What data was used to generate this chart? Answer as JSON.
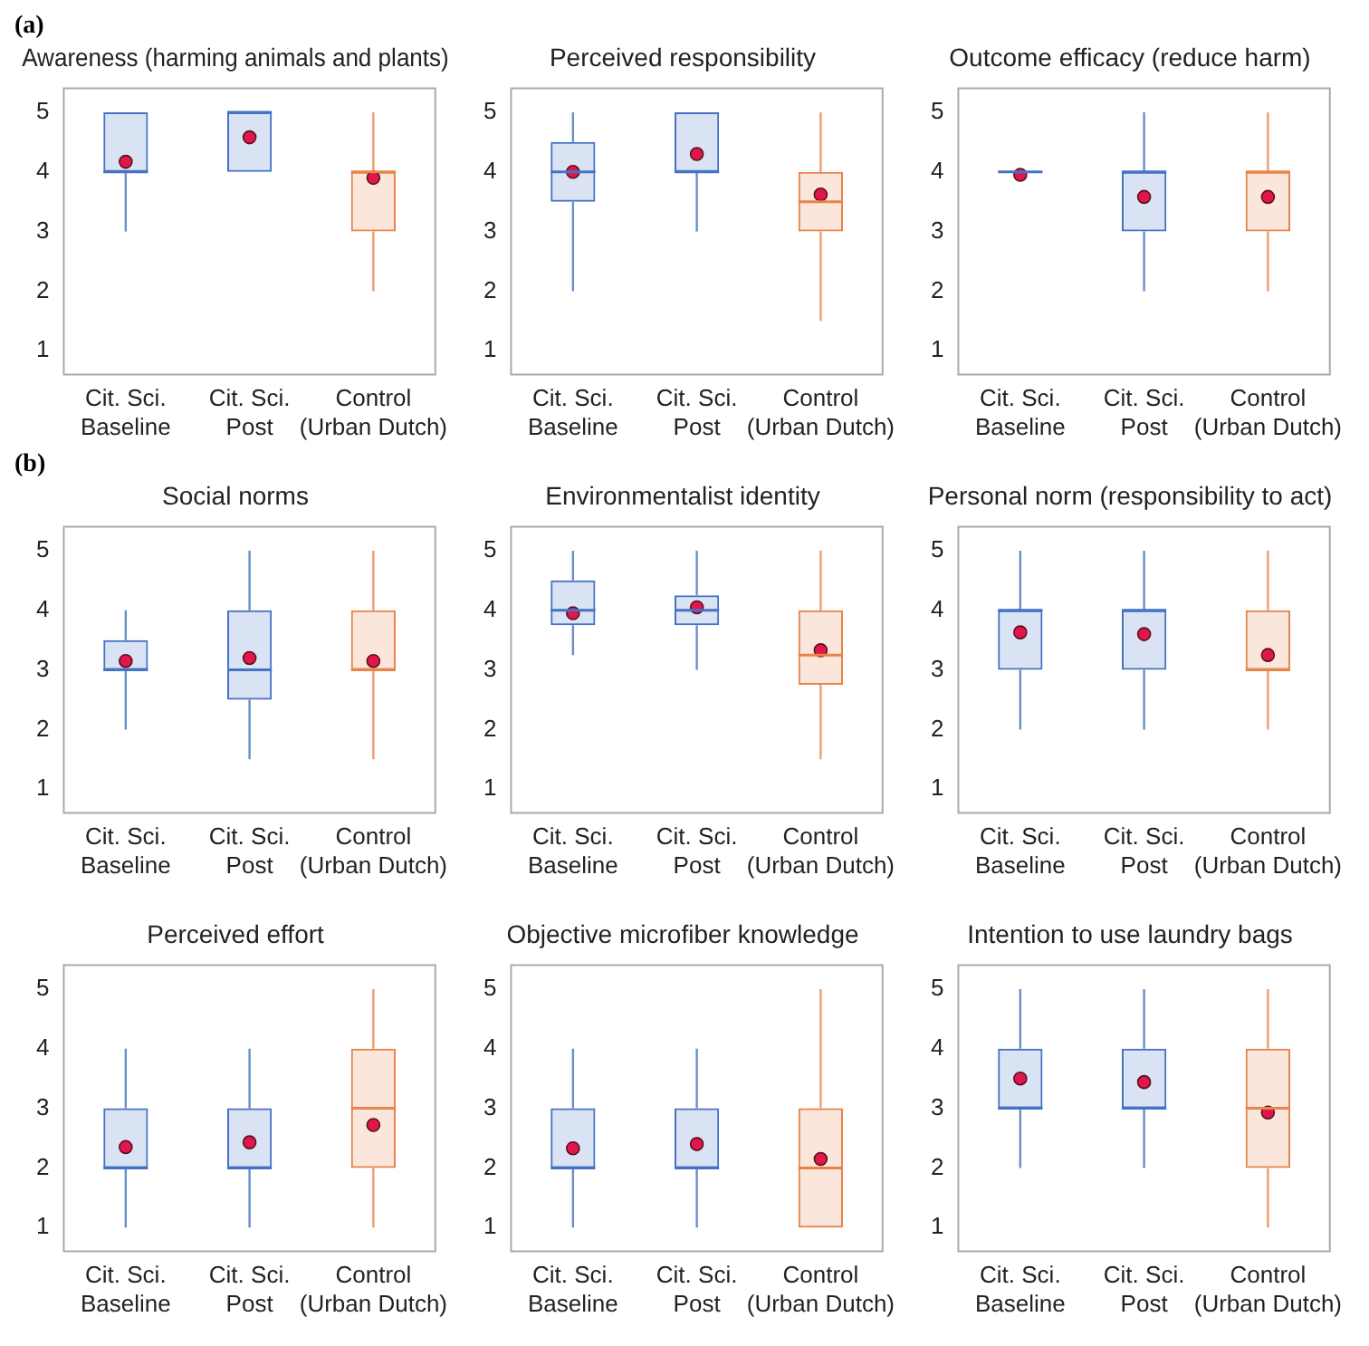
{
  "chart_data": [
    {
      "type": "box",
      "title": "Awareness (harming animals and plants)",
      "annotations": [
        "(a)"
      ],
      "categories": [
        "Cit. Sci. Baseline",
        "Cit. Sci. Post",
        "Control (Urban Dutch)"
      ],
      "colors": [
        "#4472c4",
        "#4472c4",
        "#e8834a"
      ],
      "ylim": [
        0.6,
        5.4
      ],
      "yticks": [
        1,
        2,
        3,
        4,
        5
      ],
      "grid": false,
      "legend": false,
      "boxes": [
        {
          "low": 3,
          "q1": 4,
          "median": 4,
          "q3": 5,
          "high": 5,
          "mean": 4.17
        },
        {
          "low": 4,
          "q1": 4,
          "median": 5,
          "q3": 5,
          "high": 5,
          "mean": 4.58
        },
        {
          "low": 2,
          "q1": 3,
          "median": 4,
          "q3": 4,
          "high": 5,
          "mean": 3.9
        }
      ]
    },
    {
      "type": "box",
      "title": "Perceived responsibility",
      "categories": [
        "Cit. Sci. Baseline",
        "Cit. Sci. Post",
        "Control (Urban Dutch)"
      ],
      "colors": [
        "#4472c4",
        "#4472c4",
        "#e8834a"
      ],
      "ylim": [
        0.6,
        5.4
      ],
      "yticks": [
        1,
        2,
        3,
        4,
        5
      ],
      "grid": false,
      "legend": false,
      "boxes": [
        {
          "low": 2,
          "q1": 3.5,
          "median": 4,
          "q3": 4.5,
          "high": 5,
          "mean": 4.0
        },
        {
          "low": 3,
          "q1": 4,
          "median": 4,
          "q3": 5,
          "high": 5,
          "mean": 4.3
        },
        {
          "low": 1.5,
          "q1": 3,
          "median": 3.5,
          "q3": 4,
          "high": 5,
          "mean": 3.62
        }
      ]
    },
    {
      "type": "box",
      "title": "Outcome efficacy (reduce harm)",
      "categories": [
        "Cit. Sci. Baseline",
        "Cit. Sci. Post",
        "Control (Urban Dutch)"
      ],
      "colors": [
        "#4472c4",
        "#4472c4",
        "#e8834a"
      ],
      "ylim": [
        0.6,
        5.4
      ],
      "yticks": [
        1,
        2,
        3,
        4,
        5
      ],
      "grid": false,
      "legend": false,
      "boxes": [
        {
          "low": 4,
          "q1": 4,
          "median": 4,
          "q3": 4,
          "high": 4,
          "mean": 3.95
        },
        {
          "low": 2,
          "q1": 3,
          "median": 4,
          "q3": 4,
          "high": 5,
          "mean": 3.58
        },
        {
          "low": 2,
          "q1": 3,
          "median": 4,
          "q3": 4,
          "high": 5,
          "mean": 3.58
        }
      ]
    },
    {
      "type": "box",
      "title": "Social norms",
      "annotations": [
        "(b)"
      ],
      "categories": [
        "Cit. Sci. Baseline",
        "Cit. Sci. Post",
        "Control (Urban Dutch)"
      ],
      "colors": [
        "#4472c4",
        "#4472c4",
        "#e8834a"
      ],
      "ylim": [
        0.6,
        5.4
      ],
      "yticks": [
        1,
        2,
        3,
        4,
        5
      ],
      "grid": false,
      "legend": false,
      "boxes": [
        {
          "low": 2,
          "q1": 3,
          "median": 3,
          "q3": 3.5,
          "high": 4,
          "mean": 3.15
        },
        {
          "low": 1.5,
          "q1": 2.5,
          "median": 3,
          "q3": 4,
          "high": 5,
          "mean": 3.2
        },
        {
          "low": 1.5,
          "q1": 3,
          "median": 3,
          "q3": 4,
          "high": 5,
          "mean": 3.15
        }
      ]
    },
    {
      "type": "box",
      "title": "Environmentalist identity",
      "categories": [
        "Cit. Sci. Baseline",
        "Cit. Sci. Post",
        "Control (Urban Dutch)"
      ],
      "colors": [
        "#4472c4",
        "#4472c4",
        "#e8834a"
      ],
      "ylim": [
        0.6,
        5.4
      ],
      "yticks": [
        1,
        2,
        3,
        4,
        5
      ],
      "grid": false,
      "legend": false,
      "boxes": [
        {
          "low": 3.25,
          "q1": 3.75,
          "median": 4,
          "q3": 4.5,
          "high": 5,
          "mean": 3.95
        },
        {
          "low": 3,
          "q1": 3.75,
          "median": 4,
          "q3": 4.25,
          "high": 5,
          "mean": 4.05
        },
        {
          "low": 1.5,
          "q1": 2.75,
          "median": 3.25,
          "q3": 4,
          "high": 5,
          "mean": 3.33
        }
      ]
    },
    {
      "type": "box",
      "title": "Personal norm (responsibility to act)",
      "categories": [
        "Cit. Sci. Baseline",
        "Cit. Sci. Post",
        "Control (Urban Dutch)"
      ],
      "colors": [
        "#4472c4",
        "#4472c4",
        "#e8834a"
      ],
      "ylim": [
        0.6,
        5.4
      ],
      "yticks": [
        1,
        2,
        3,
        4,
        5
      ],
      "grid": false,
      "legend": false,
      "boxes": [
        {
          "low": 2,
          "q1": 3,
          "median": 4,
          "q3": 4,
          "high": 5,
          "mean": 3.63
        },
        {
          "low": 2,
          "q1": 3,
          "median": 4,
          "q3": 4,
          "high": 5,
          "mean": 3.6
        },
        {
          "low": 2,
          "q1": 3,
          "median": 3,
          "q3": 4,
          "high": 5,
          "mean": 3.25
        }
      ]
    },
    {
      "type": "box",
      "title": "Perceived effort",
      "categories": [
        "Cit. Sci. Baseline",
        "Cit. Sci. Post",
        "Control (Urban Dutch)"
      ],
      "colors": [
        "#4472c4",
        "#4472c4",
        "#e8834a"
      ],
      "ylim": [
        0.6,
        5.4
      ],
      "yticks": [
        1,
        2,
        3,
        4,
        5
      ],
      "grid": false,
      "legend": false,
      "boxes": [
        {
          "low": 1,
          "q1": 2,
          "median": 2,
          "q3": 3,
          "high": 4,
          "mean": 2.35
        },
        {
          "low": 1,
          "q1": 2,
          "median": 2,
          "q3": 3,
          "high": 4,
          "mean": 2.43
        },
        {
          "low": 1,
          "q1": 2,
          "median": 3,
          "q3": 4,
          "high": 5,
          "mean": 2.72
        }
      ]
    },
    {
      "type": "box",
      "title": "Objective microfiber knowledge",
      "categories": [
        "Cit. Sci. Baseline",
        "Cit. Sci. Post",
        "Control (Urban Dutch)"
      ],
      "colors": [
        "#4472c4",
        "#4472c4",
        "#e8834a"
      ],
      "ylim": [
        0.6,
        5.4
      ],
      "yticks": [
        1,
        2,
        3,
        4,
        5
      ],
      "grid": false,
      "legend": false,
      "boxes": [
        {
          "low": 1,
          "q1": 2,
          "median": 2,
          "q3": 3,
          "high": 4,
          "mean": 2.33
        },
        {
          "low": 1,
          "q1": 2,
          "median": 2,
          "q3": 3,
          "high": 4,
          "mean": 2.4
        },
        {
          "low": 1,
          "q1": 1,
          "median": 2,
          "q3": 3,
          "high": 5,
          "mean": 2.15
        }
      ]
    },
    {
      "type": "box",
      "title": "Intention to use laundry bags",
      "categories": [
        "Cit. Sci. Baseline",
        "Cit. Sci. Post",
        "Control (Urban Dutch)"
      ],
      "colors": [
        "#4472c4",
        "#4472c4",
        "#e8834a"
      ],
      "ylim": [
        0.6,
        5.4
      ],
      "yticks": [
        1,
        2,
        3,
        4,
        5
      ],
      "grid": false,
      "legend": false,
      "boxes": [
        {
          "low": 2,
          "q1": 3,
          "median": 3,
          "q3": 4,
          "high": 5,
          "mean": 3.5
        },
        {
          "low": 2,
          "q1": 3,
          "median": 3,
          "q3": 4,
          "high": 5,
          "mean": 3.44
        },
        {
          "low": 1,
          "q1": 2,
          "median": 3,
          "q3": 4,
          "high": 5,
          "mean": 2.93
        }
      ]
    }
  ]
}
